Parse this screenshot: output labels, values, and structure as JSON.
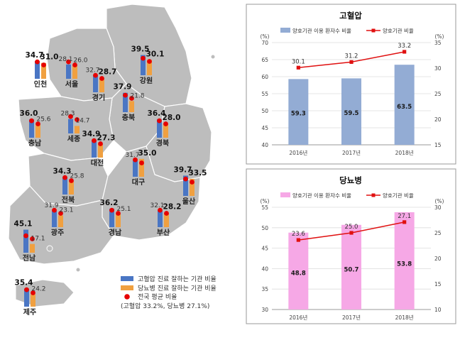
{
  "colors": {
    "map_hypertension": "#4a76c4",
    "map_diabetes": "#f0a040",
    "map_avg_dot": "#e60000",
    "ht_bar": "#93acd4",
    "dm_bar": "#f6a8e6",
    "line": "#e01010"
  },
  "map": {
    "legend": {
      "hypertension": "고혈압 진료 잘하는 기관 비율",
      "diabetes": "당뇨병 진료 잘하는 기관 비율",
      "avg": "전국 평균 비율",
      "avg_note": "(고혈압 33.2%, 당뇨병 27.1%)"
    },
    "national_avg": {
      "hypertension": 33.2,
      "diabetes": 27.1
    },
    "regions": [
      {
        "name": "인천",
        "hypertension": 34.7,
        "diabetes": 31.0,
        "ht_label": "34.7",
        "dm_label": "31.0",
        "ht_bold": true,
        "dm_bold": true
      },
      {
        "name": "서울",
        "hypertension": 28.1,
        "diabetes": 26.0,
        "ht_label": "28.1",
        "dm_label": "26.0",
        "ht_bold": false,
        "dm_bold": false
      },
      {
        "name": "경기",
        "hypertension": 32.7,
        "diabetes": 28.7,
        "ht_label": "32.7",
        "dm_label": "28.7",
        "ht_bold": false,
        "dm_bold": true
      },
      {
        "name": "강원",
        "hypertension": 39.5,
        "diabetes": 30.1,
        "ht_label": "39.5",
        "dm_label": "30.1",
        "ht_bold": true,
        "dm_bold": true
      },
      {
        "name": "충북",
        "hypertension": 37.9,
        "diabetes": 21.8,
        "ht_label": "37.9",
        "dm_label": "21.8",
        "ht_bold": true,
        "dm_bold": false
      },
      {
        "name": "세종",
        "hypertension": 28.3,
        "diabetes": 14.7,
        "ht_label": "28.3",
        "dm_label": "14.7",
        "ht_bold": false,
        "dm_bold": false
      },
      {
        "name": "충남",
        "hypertension": 36.0,
        "diabetes": 25.6,
        "ht_label": "36.0",
        "dm_label": "25.6",
        "ht_bold": true,
        "dm_bold": false
      },
      {
        "name": "대전",
        "hypertension": 34.9,
        "diabetes": 27.3,
        "ht_label": "34.9",
        "dm_label": "27.3",
        "ht_bold": true,
        "dm_bold": true
      },
      {
        "name": "경북",
        "hypertension": 36.4,
        "diabetes": 28.0,
        "ht_label": "36.4",
        "dm_label": "28.0",
        "ht_bold": true,
        "dm_bold": true
      },
      {
        "name": "전북",
        "hypertension": 34.3,
        "diabetes": 25.8,
        "ht_label": "34.3",
        "dm_label": "25.8",
        "ht_bold": true,
        "dm_bold": false
      },
      {
        "name": "대구",
        "hypertension": 31.7,
        "diabetes": 35.0,
        "ht_label": "31.7",
        "dm_label": "35.0",
        "ht_bold": false,
        "dm_bold": true
      },
      {
        "name": "울산",
        "hypertension": 39.7,
        "diabetes": 33.5,
        "ht_label": "39.7",
        "dm_label": "33.5",
        "ht_bold": true,
        "dm_bold": true
      },
      {
        "name": "광주",
        "hypertension": 31.9,
        "diabetes": 23.1,
        "ht_label": "31.9",
        "dm_label": "23.1",
        "ht_bold": false,
        "dm_bold": false
      },
      {
        "name": "경남",
        "hypertension": 36.2,
        "diabetes": 25.1,
        "ht_label": "36.2",
        "dm_label": "25.1",
        "ht_bold": true,
        "dm_bold": false
      },
      {
        "name": "부산",
        "hypertension": 32.1,
        "diabetes": 28.2,
        "ht_label": "32.1",
        "dm_label": "28.2",
        "ht_bold": false,
        "dm_bold": true
      },
      {
        "name": "전남",
        "hypertension": 45.1,
        "diabetes": 17.1,
        "ht_label": "45.1",
        "dm_label": "17.1",
        "ht_bold": true,
        "dm_bold": false
      },
      {
        "name": "제주",
        "hypertension": 35.4,
        "diabetes": 24.2,
        "ht_label": "35.4",
        "dm_label": "24.2",
        "ht_bold": true,
        "dm_bold": false
      }
    ]
  },
  "chart_data": [
    {
      "type": "bar",
      "title": "고혈압",
      "categories": [
        "2016년",
        "2017년",
        "2018년"
      ],
      "series": [
        {
          "name": "양호기관 이용 환자수 비율",
          "kind": "bar",
          "axis": "left",
          "values": [
            59.3,
            59.5,
            63.5
          ],
          "labels": [
            "59.3",
            "59.5",
            "63.5"
          ]
        },
        {
          "name": "양호기관 비율",
          "kind": "line",
          "axis": "right",
          "values": [
            30.1,
            31.2,
            33.2
          ],
          "labels": [
            "30.1",
            "31.2",
            "33.2"
          ]
        }
      ],
      "ylim_left": [
        40,
        70
      ],
      "yticks_left": [
        40,
        45,
        50,
        55,
        60,
        65,
        70
      ],
      "ytick_labels_left": [
        "40",
        "45",
        "50",
        "55",
        "60",
        "65",
        "70"
      ],
      "ylim_right": [
        15,
        35
      ],
      "yticks_right": [
        15,
        20,
        25,
        30,
        35
      ],
      "ytick_labels_right": [
        "15",
        "20",
        "25",
        "30",
        "35"
      ],
      "unit_left": "(%)",
      "unit_right": "(%)",
      "legend": "top"
    },
    {
      "type": "bar",
      "title": "당뇨병",
      "categories": [
        "2016년",
        "2017년",
        "2018년"
      ],
      "series": [
        {
          "name": "양호기관 이용 환자수 비율",
          "kind": "bar",
          "axis": "left",
          "values": [
            48.8,
            50.7,
            53.8
          ],
          "labels": [
            "48.8",
            "50.7",
            "53.8"
          ]
        },
        {
          "name": "양호기관 비율",
          "kind": "line",
          "axis": "right",
          "values": [
            23.6,
            25.0,
            27.1
          ],
          "labels": [
            "23.6",
            "25.0",
            "27.1"
          ]
        }
      ],
      "ylim_left": [
        30,
        55
      ],
      "yticks_left": [
        30,
        35,
        40,
        45,
        50,
        55
      ],
      "ytick_labels_left": [
        "30",
        "35",
        "40",
        "45",
        "50",
        "55"
      ],
      "ylim_right": [
        10,
        30
      ],
      "yticks_right": [
        10,
        15,
        20,
        25,
        30
      ],
      "ytick_labels_right": [
        "10",
        "15",
        "20",
        "25",
        "30"
      ],
      "unit_left": "(%)",
      "unit_right": "(%)",
      "legend": "top"
    }
  ]
}
